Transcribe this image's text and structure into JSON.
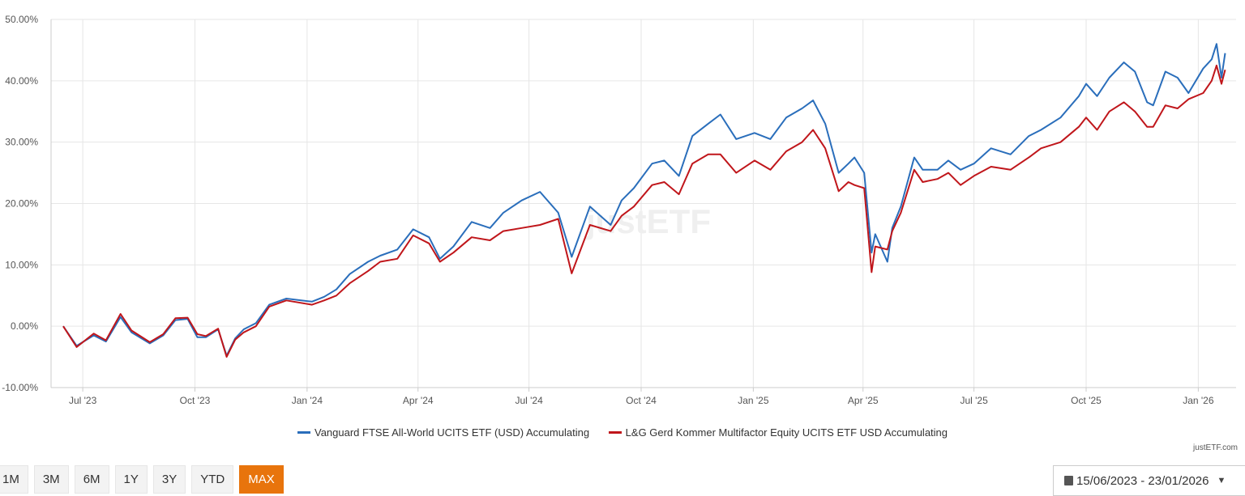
{
  "chart_data": {
    "type": "line",
    "title": "",
    "xlabel": "",
    "ylabel": "",
    "xlim": [
      "2023-06-05",
      "2026-02-01"
    ],
    "ylim": [
      -10,
      50
    ],
    "yticks": [
      -10,
      0,
      10,
      20,
      30,
      40,
      50
    ],
    "ytick_labels": [
      "-10.00%",
      "0.00%",
      "10.00%",
      "20.00%",
      "30.00%",
      "40.00%",
      "50.00%"
    ],
    "xticks": [
      "2023-07-01",
      "2023-10-01",
      "2024-01-01",
      "2024-04-01",
      "2024-07-01",
      "2024-10-01",
      "2025-01-01",
      "2025-04-01",
      "2025-07-01",
      "2025-10-01",
      "2026-01-01"
    ],
    "xtick_labels": [
      "Jul '23",
      "Oct '23",
      "Jan '24",
      "Apr '24",
      "Jul '24",
      "Oct '24",
      "Jan '25",
      "Apr '25",
      "Jul '25",
      "Oct '25",
      "Jan '26"
    ],
    "grid": true,
    "legend_position": "bottom-center",
    "series": [
      {
        "name": "Vanguard FTSE All-World UCITS ETF (USD) Accumulating",
        "color": "#2a6ebb",
        "points": [
          [
            "2023-06-15",
            0
          ],
          [
            "2023-06-26",
            -3.2
          ],
          [
            "2023-07-10",
            -1.5
          ],
          [
            "2023-07-20",
            -2.5
          ],
          [
            "2023-08-01",
            1.5
          ],
          [
            "2023-08-10",
            -1.0
          ],
          [
            "2023-08-25",
            -2.8
          ],
          [
            "2023-09-05",
            -1.5
          ],
          [
            "2023-09-15",
            1.0
          ],
          [
            "2023-09-25",
            1.2
          ],
          [
            "2023-10-03",
            -1.8
          ],
          [
            "2023-10-10",
            -1.8
          ],
          [
            "2023-10-20",
            -0.5
          ],
          [
            "2023-10-27",
            -4.8
          ],
          [
            "2023-11-03",
            -2.0
          ],
          [
            "2023-11-10",
            -0.5
          ],
          [
            "2023-11-20",
            0.5
          ],
          [
            "2023-12-01",
            3.5
          ],
          [
            "2023-12-15",
            4.5
          ],
          [
            "2024-01-05",
            4.0
          ],
          [
            "2024-01-15",
            4.8
          ],
          [
            "2024-01-25",
            6.0
          ],
          [
            "2024-02-05",
            8.5
          ],
          [
            "2024-02-20",
            10.5
          ],
          [
            "2024-03-01",
            11.5
          ],
          [
            "2024-03-15",
            12.5
          ],
          [
            "2024-03-28",
            15.8
          ],
          [
            "2024-04-10",
            14.5
          ],
          [
            "2024-04-19",
            11.0
          ],
          [
            "2024-04-30",
            13.0
          ],
          [
            "2024-05-15",
            17.0
          ],
          [
            "2024-05-30",
            16.0
          ],
          [
            "2024-06-10",
            18.5
          ],
          [
            "2024-06-25",
            20.5
          ],
          [
            "2024-07-10",
            21.9
          ],
          [
            "2024-07-25",
            18.5
          ],
          [
            "2024-08-05",
            11.3
          ],
          [
            "2024-08-20",
            19.5
          ],
          [
            "2024-09-06",
            16.5
          ],
          [
            "2024-09-15",
            20.5
          ],
          [
            "2024-09-25",
            22.5
          ],
          [
            "2024-10-10",
            26.5
          ],
          [
            "2024-10-20",
            27.0
          ],
          [
            "2024-11-01",
            24.5
          ],
          [
            "2024-11-12",
            31.0
          ],
          [
            "2024-11-25",
            33.0
          ],
          [
            "2024-12-05",
            34.5
          ],
          [
            "2024-12-18",
            30.5
          ],
          [
            "2025-01-02",
            31.5
          ],
          [
            "2025-01-15",
            30.5
          ],
          [
            "2025-01-28",
            34.0
          ],
          [
            "2025-02-10",
            35.5
          ],
          [
            "2025-02-19",
            36.8
          ],
          [
            "2025-03-01",
            33.0
          ],
          [
            "2025-03-12",
            25.0
          ],
          [
            "2025-03-20",
            26.5
          ],
          [
            "2025-03-25",
            27.5
          ],
          [
            "2025-04-02",
            25.0
          ],
          [
            "2025-04-08",
            12.0
          ],
          [
            "2025-04-11",
            15.0
          ],
          [
            "2025-04-21",
            10.5
          ],
          [
            "2025-04-25",
            16.0
          ],
          [
            "2025-05-02",
            19.5
          ],
          [
            "2025-05-13",
            27.5
          ],
          [
            "2025-05-20",
            25.5
          ],
          [
            "2025-06-01",
            25.5
          ],
          [
            "2025-06-10",
            27.0
          ],
          [
            "2025-06-20",
            25.5
          ],
          [
            "2025-07-01",
            26.5
          ],
          [
            "2025-07-15",
            29.0
          ],
          [
            "2025-07-31",
            28.0
          ],
          [
            "2025-08-15",
            31.0
          ],
          [
            "2025-08-25",
            32.0
          ],
          [
            "2025-09-10",
            34.0
          ],
          [
            "2025-09-25",
            37.5
          ],
          [
            "2025-10-01",
            39.5
          ],
          [
            "2025-10-10",
            37.5
          ],
          [
            "2025-10-20",
            40.5
          ],
          [
            "2025-11-01",
            43.0
          ],
          [
            "2025-11-10",
            41.5
          ],
          [
            "2025-11-20",
            36.5
          ],
          [
            "2025-11-25",
            36.0
          ],
          [
            "2025-12-05",
            41.5
          ],
          [
            "2025-12-15",
            40.5
          ],
          [
            "2025-12-24",
            38.0
          ],
          [
            "2026-01-05",
            42.0
          ],
          [
            "2026-01-12",
            43.5
          ],
          [
            "2026-01-16",
            46.0
          ],
          [
            "2026-01-20",
            40.5
          ],
          [
            "2026-01-23",
            44.5
          ]
        ]
      },
      {
        "name": "L&G Gerd Kommer Multifactor Equity UCITS ETF USD Accumulating",
        "color": "#c0161b",
        "points": [
          [
            "2023-06-15",
            0
          ],
          [
            "2023-06-26",
            -3.4
          ],
          [
            "2023-07-10",
            -1.2
          ],
          [
            "2023-07-20",
            -2.3
          ],
          [
            "2023-08-01",
            2.0
          ],
          [
            "2023-08-10",
            -0.7
          ],
          [
            "2023-08-25",
            -2.6
          ],
          [
            "2023-09-05",
            -1.3
          ],
          [
            "2023-09-15",
            1.3
          ],
          [
            "2023-09-25",
            1.4
          ],
          [
            "2023-10-03",
            -1.3
          ],
          [
            "2023-10-10",
            -1.6
          ],
          [
            "2023-10-20",
            -0.4
          ],
          [
            "2023-10-27",
            -5.0
          ],
          [
            "2023-11-03",
            -2.2
          ],
          [
            "2023-11-10",
            -1.0
          ],
          [
            "2023-11-20",
            0.0
          ],
          [
            "2023-12-01",
            3.2
          ],
          [
            "2023-12-15",
            4.2
          ],
          [
            "2024-01-05",
            3.5
          ],
          [
            "2024-01-15",
            4.2
          ],
          [
            "2024-01-25",
            5.0
          ],
          [
            "2024-02-05",
            7.0
          ],
          [
            "2024-02-20",
            9.0
          ],
          [
            "2024-03-01",
            10.5
          ],
          [
            "2024-03-15",
            11.0
          ],
          [
            "2024-03-28",
            14.8
          ],
          [
            "2024-04-10",
            13.5
          ],
          [
            "2024-04-19",
            10.5
          ],
          [
            "2024-04-30",
            12.0
          ],
          [
            "2024-05-15",
            14.5
          ],
          [
            "2024-05-30",
            14.0
          ],
          [
            "2024-06-10",
            15.5
          ],
          [
            "2024-06-25",
            16.0
          ],
          [
            "2024-07-10",
            16.5
          ],
          [
            "2024-07-25",
            17.5
          ],
          [
            "2024-08-05",
            8.6
          ],
          [
            "2024-08-20",
            16.5
          ],
          [
            "2024-09-06",
            15.5
          ],
          [
            "2024-09-15",
            18.0
          ],
          [
            "2024-09-25",
            19.5
          ],
          [
            "2024-10-10",
            23.0
          ],
          [
            "2024-10-20",
            23.5
          ],
          [
            "2024-11-01",
            21.5
          ],
          [
            "2024-11-12",
            26.5
          ],
          [
            "2024-11-25",
            28.0
          ],
          [
            "2024-12-05",
            28.0
          ],
          [
            "2024-12-18",
            25.0
          ],
          [
            "2025-01-02",
            27.0
          ],
          [
            "2025-01-15",
            25.5
          ],
          [
            "2025-01-28",
            28.5
          ],
          [
            "2025-02-10",
            30.0
          ],
          [
            "2025-02-19",
            32.0
          ],
          [
            "2025-03-01",
            29.0
          ],
          [
            "2025-03-12",
            22.0
          ],
          [
            "2025-03-20",
            23.5
          ],
          [
            "2025-03-25",
            23.0
          ],
          [
            "2025-04-02",
            22.5
          ],
          [
            "2025-04-08",
            8.8
          ],
          [
            "2025-04-11",
            13.0
          ],
          [
            "2025-04-21",
            12.5
          ],
          [
            "2025-04-25",
            15.5
          ],
          [
            "2025-05-02",
            18.5
          ],
          [
            "2025-05-13",
            25.5
          ],
          [
            "2025-05-20",
            23.5
          ],
          [
            "2025-06-01",
            24.0
          ],
          [
            "2025-06-10",
            25.0
          ],
          [
            "2025-06-20",
            23.0
          ],
          [
            "2025-07-01",
            24.5
          ],
          [
            "2025-07-15",
            26.0
          ],
          [
            "2025-07-31",
            25.5
          ],
          [
            "2025-08-15",
            27.5
          ],
          [
            "2025-08-25",
            29.0
          ],
          [
            "2025-09-10",
            30.0
          ],
          [
            "2025-09-25",
            32.5
          ],
          [
            "2025-10-01",
            34.0
          ],
          [
            "2025-10-10",
            32.0
          ],
          [
            "2025-10-20",
            35.0
          ],
          [
            "2025-11-01",
            36.5
          ],
          [
            "2025-11-10",
            35.0
          ],
          [
            "2025-11-20",
            32.5
          ],
          [
            "2025-11-25",
            32.5
          ],
          [
            "2025-12-05",
            36.0
          ],
          [
            "2025-12-15",
            35.5
          ],
          [
            "2025-12-24",
            37.0
          ],
          [
            "2026-01-05",
            38.0
          ],
          [
            "2026-01-12",
            40.0
          ],
          [
            "2026-01-16",
            42.5
          ],
          [
            "2026-01-20",
            39.5
          ],
          [
            "2026-01-23",
            41.8
          ]
        ]
      }
    ]
  },
  "watermark": "justETF",
  "credit": "justETF.com",
  "ranges": [
    {
      "label": "1M",
      "active": false
    },
    {
      "label": "3M",
      "active": false
    },
    {
      "label": "6M",
      "active": false
    },
    {
      "label": "1Y",
      "active": false
    },
    {
      "label": "3Y",
      "active": false
    },
    {
      "label": "YTD",
      "active": false
    },
    {
      "label": "MAX",
      "active": true
    }
  ],
  "accent_color": "#e8740c",
  "date_range": {
    "icon": "calendar-icon",
    "value": "15/06/2023 - 23/01/2026"
  }
}
